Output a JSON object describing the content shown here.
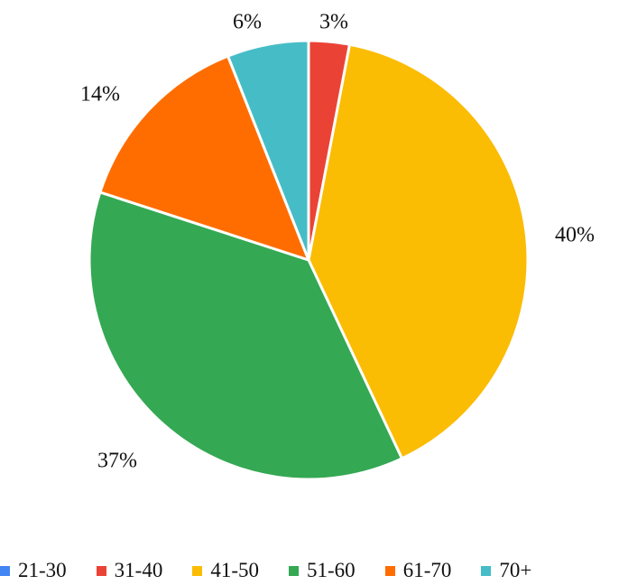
{
  "chart_data": {
    "type": "pie",
    "title": "",
    "categories": [
      "21-30",
      "31-40",
      "41-50",
      "51-60",
      "61-70",
      "70+"
    ],
    "values": [
      0,
      3,
      40,
      37,
      14,
      6
    ],
    "labels": [
      "",
      "3%",
      "40%",
      "37%",
      "14%",
      "6%"
    ],
    "colors": [
      "#4285F4",
      "#EA4335",
      "#FBBC04",
      "#34A853",
      "#FF6D01",
      "#46BDC6"
    ],
    "start_angle_deg": 0,
    "direction": "clockwise",
    "legend_position": "bottom"
  }
}
